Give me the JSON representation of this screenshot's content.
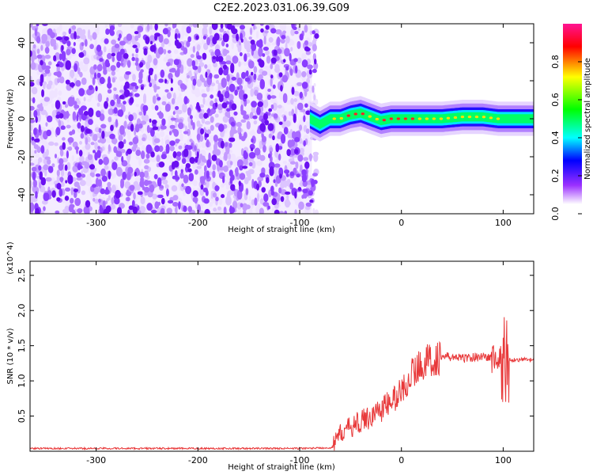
{
  "title": "C2E2.2023.031.06.39.G09",
  "chart_data": [
    {
      "type": "heatmap",
      "xlabel": "Height of straight line (km)",
      "ylabel": "Frequency (Hz)",
      "xlim": [
        -365,
        130
      ],
      "ylim": [
        -50,
        50
      ],
      "x_ticks": [
        -300,
        -200,
        -100,
        0,
        100
      ],
      "x_tick_labels": [
        "-300",
        "-200",
        "-100",
        "0",
        "100"
      ],
      "y_ticks": [
        40,
        20,
        0,
        -20,
        -40
      ],
      "y_tick_labels": [
        "40",
        "20",
        "0",
        "-20",
        "-40"
      ],
      "colorbar": {
        "label": "Normalized spectral amplitude",
        "range": [
          0,
          1
        ],
        "ticks": [
          0,
          0.2,
          0.4,
          0.6,
          0.8
        ],
        "tick_labels": [
          "0.0",
          "0.2",
          "0.4",
          "0.6",
          "0.8"
        ],
        "colormap": [
          "#ffffff",
          "#9b30ff",
          "#0000ff",
          "#00ffff",
          "#00ff00",
          "#ffff00",
          "#ff8000",
          "#ff0000",
          "#ff1493"
        ]
      },
      "noise_region_x": [
        -365,
        -88
      ],
      "signal_track": {
        "x": [
          -90,
          -80,
          -70,
          -60,
          -50,
          -40,
          -30,
          -20,
          -10,
          0,
          10,
          20,
          40,
          60,
          80,
          95,
          100,
          130
        ],
        "y": [
          0,
          -3,
          0,
          0,
          2,
          3,
          1,
          -1,
          0,
          0,
          0,
          0,
          0,
          1,
          1,
          0,
          0,
          0
        ],
        "peak_amplitude": [
          0.6,
          0.5,
          0.7,
          0.8,
          0.9,
          0.9,
          0.8,
          0.85,
          0.9,
          0.95,
          0.9,
          0.8,
          0.75,
          0.7,
          0.8,
          0.7,
          0.5,
          0.6
        ]
      }
    },
    {
      "type": "line",
      "xlabel": "Height of straight line (km)",
      "ylabel": "SNR (10 * v/v)",
      "y_multiplier": "(x10^4)",
      "xlim": [
        -365,
        130
      ],
      "ylim": [
        0,
        27000
      ],
      "x_ticks": [
        -300,
        -200,
        -100,
        0,
        100
      ],
      "x_tick_labels": [
        "-300",
        "-200",
        "-100",
        "0",
        "100"
      ],
      "y_ticks": [
        5000,
        10000,
        15000,
        20000,
        25000
      ],
      "y_tick_labels": [
        "0.5",
        "1.0",
        "1.5",
        "2.0",
        "2.5"
      ],
      "color": "#e8393a",
      "series": [
        {
          "x": [
            -365,
            -300,
            -200,
            -100,
            -68,
            -60,
            -50,
            -40,
            -30,
            -20,
            -10,
            0,
            10,
            20,
            30,
            40,
            60,
            80,
            95,
            100,
            105,
            110,
            130
          ],
          "y": [
            400,
            400,
            400,
            400,
            500,
            2500,
            3500,
            4200,
            5000,
            6000,
            7000,
            8500,
            11000,
            12500,
            13000,
            13500,
            13200,
            13500,
            13000,
            13000,
            13000,
            13000,
            13000
          ]
        }
      ]
    }
  ]
}
